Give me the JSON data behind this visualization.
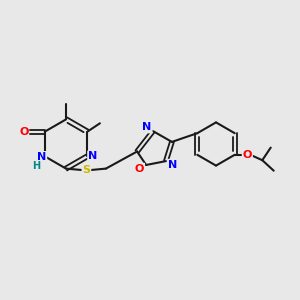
{
  "background_color": "#e8e8e8",
  "bond_color": "#1a1a1a",
  "atom_colors": {
    "N": "#0000ff",
    "O": "#ff0000",
    "S": "#ccbb00",
    "H": "#008888",
    "C": "#1a1a1a"
  },
  "figsize": [
    3.0,
    3.0
  ],
  "dpi": 100
}
